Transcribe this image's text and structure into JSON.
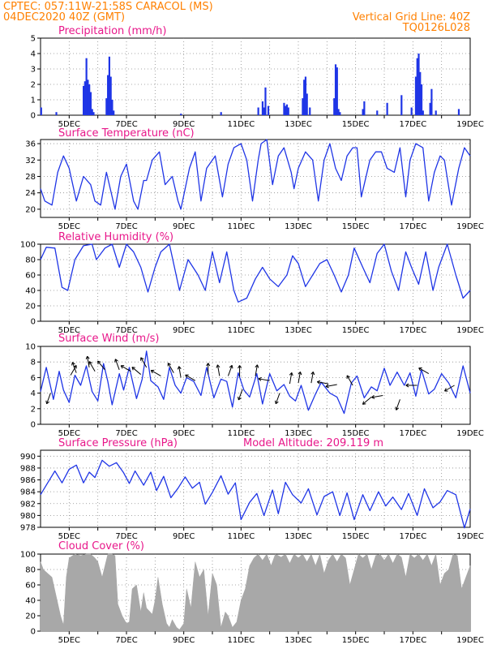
{
  "header": {
    "line1": "CPTEC:   057:11W-21:58S  CARACOL (MS)",
    "line2": "04DEC2020 40Z (GMT)",
    "right1": "Vertical Grid Line: 40Z",
    "right2": "TQ0126L028"
  },
  "colors": {
    "header": "#ff8000",
    "title": "#e8178a",
    "series": "#1f35e6",
    "cloud": "#a8a8a8",
    "grid": "#8c8c8c"
  },
  "x_axis": {
    "ticks": [
      "5DEC",
      "7DEC",
      "9DEC",
      "11DEC",
      "13DEC",
      "15DEC",
      "17DEC",
      "19DEC"
    ],
    "range_days": [
      4,
      19
    ]
  },
  "chart_data": [
    {
      "id": "precip",
      "type": "bar",
      "title": "Precipitation (mm/h)",
      "ylim": [
        0,
        5
      ],
      "yticks": [
        0,
        1,
        2,
        3,
        4,
        5
      ],
      "x": [
        4.02,
        4.55,
        5.5,
        5.55,
        5.6,
        5.65,
        5.7,
        5.75,
        5.8,
        5.85,
        6.3,
        6.35,
        6.4,
        6.45,
        6.5,
        6.55,
        8.9,
        10.3,
        11.6,
        11.75,
        11.8,
        11.85,
        11.95,
        12.5,
        12.55,
        12.6,
        12.65,
        13.15,
        13.2,
        13.25,
        13.3,
        13.4,
        14.25,
        14.3,
        14.35,
        14.4,
        14.45,
        15.25,
        15.3,
        15.75,
        16.1,
        16.6,
        16.95,
        17.1,
        17.15,
        17.2,
        17.25,
        17.3,
        17.35,
        17.6,
        17.65,
        17.8,
        18.6
      ],
      "values": [
        0.5,
        0.2,
        1.9,
        2.2,
        3.7,
        2.3,
        2.0,
        1.5,
        0.4,
        0.2,
        1.1,
        2.6,
        3.8,
        2.5,
        1.0,
        0.3,
        0.1,
        0.2,
        0.5,
        0.9,
        0.5,
        1.8,
        0.6,
        0.8,
        0.6,
        0.7,
        0.5,
        1.1,
        2.3,
        2.5,
        1.4,
        0.5,
        1.1,
        3.3,
        3.1,
        0.4,
        0.2,
        0.4,
        0.9,
        0.3,
        0.8,
        1.3,
        0.5,
        2.5,
        3.7,
        4.0,
        2.8,
        2.0,
        0.3,
        0.8,
        1.7,
        0.3,
        0.4
      ]
    },
    {
      "id": "temp",
      "type": "line",
      "title": "Surface Temperature (nC)",
      "ylim": [
        18,
        37
      ],
      "yticks": [
        20,
        24,
        28,
        32,
        36
      ],
      "x": [
        4.0,
        4.15,
        4.4,
        4.6,
        4.8,
        5.0,
        5.25,
        5.5,
        5.75,
        5.9,
        6.1,
        6.3,
        6.6,
        6.8,
        7.0,
        7.25,
        7.4,
        7.6,
        7.7,
        7.9,
        8.15,
        8.35,
        8.6,
        8.8,
        8.9,
        9.2,
        9.4,
        9.6,
        9.8,
        10.1,
        10.35,
        10.55,
        10.75,
        11.0,
        11.2,
        11.4,
        11.6,
        11.7,
        11.9,
        12.1,
        12.3,
        12.5,
        12.75,
        12.85,
        13.0,
        13.25,
        13.5,
        13.7,
        13.9,
        14.1,
        14.3,
        14.5,
        14.7,
        14.9,
        15.05,
        15.2,
        15.5,
        15.7,
        15.9,
        16.1,
        16.35,
        16.55,
        16.75,
        16.9,
        17.1,
        17.35,
        17.55,
        17.75,
        17.95,
        18.1,
        18.35,
        18.6,
        18.8,
        19.0
      ],
      "values": [
        25,
        22,
        21,
        29,
        33,
        30,
        22,
        28,
        26,
        22,
        21,
        29,
        20,
        28,
        31,
        22,
        20,
        27,
        27,
        32,
        34,
        26,
        28,
        22,
        20,
        30,
        34,
        22,
        30,
        33,
        23,
        31,
        35,
        36,
        32,
        22,
        32,
        36,
        37,
        26,
        33,
        35,
        29,
        25,
        30,
        34,
        32,
        22,
        32,
        36,
        30,
        27,
        33,
        35,
        35,
        23,
        32,
        34,
        34,
        30,
        29,
        35,
        23,
        32,
        36,
        35,
        22,
        29,
        33,
        32,
        21,
        30,
        35,
        33
      ]
    },
    {
      "id": "rh",
      "type": "line",
      "title": "Relative Humidity (%)",
      "ylim": [
        0,
        100
      ],
      "yticks": [
        0,
        20,
        40,
        60,
        80,
        100
      ],
      "x": [
        4.0,
        4.2,
        4.5,
        4.75,
        4.95,
        5.2,
        5.5,
        5.8,
        5.95,
        6.25,
        6.5,
        6.75,
        7.0,
        7.25,
        7.5,
        7.75,
        8.0,
        8.2,
        8.5,
        8.85,
        9.15,
        9.5,
        9.75,
        10.0,
        10.25,
        10.5,
        10.75,
        10.9,
        11.2,
        11.5,
        11.75,
        12.0,
        12.3,
        12.6,
        12.8,
        13.0,
        13.25,
        13.5,
        13.75,
        14.0,
        14.25,
        14.5,
        14.75,
        14.95,
        15.25,
        15.5,
        15.75,
        16.0,
        16.25,
        16.5,
        16.75,
        16.95,
        17.2,
        17.45,
        17.7,
        17.9,
        18.2,
        18.5,
        18.75,
        19.0
      ],
      "values": [
        80,
        96,
        95,
        44,
        40,
        80,
        98,
        100,
        80,
        95,
        100,
        70,
        100,
        90,
        70,
        38,
        70,
        90,
        100,
        40,
        80,
        60,
        40,
        90,
        50,
        90,
        40,
        25,
        30,
        55,
        70,
        55,
        45,
        60,
        85,
        75,
        45,
        60,
        75,
        80,
        60,
        38,
        60,
        95,
        70,
        50,
        88,
        100,
        65,
        40,
        90,
        70,
        48,
        90,
        40,
        70,
        100,
        60,
        30,
        40
      ]
    },
    {
      "id": "wind",
      "type": "line",
      "title": "Surface Wind (m/s)",
      "ylim": [
        0,
        10
      ],
      "yticks": [
        0,
        2,
        4,
        6,
        8,
        10
      ],
      "x": [
        4.0,
        4.2,
        4.45,
        4.65,
        4.8,
        5.0,
        5.2,
        5.4,
        5.6,
        5.8,
        6.0,
        6.2,
        6.35,
        6.5,
        6.75,
        6.9,
        7.1,
        7.35,
        7.55,
        7.7,
        7.85,
        8.1,
        8.3,
        8.5,
        8.7,
        8.9,
        9.1,
        9.35,
        9.6,
        9.8,
        10.05,
        10.3,
        10.5,
        10.7,
        10.9,
        11.1,
        11.3,
        11.55,
        11.75,
        12.0,
        12.25,
        12.5,
        12.7,
        12.9,
        13.1,
        13.35,
        13.6,
        13.8,
        14.1,
        14.35,
        14.6,
        14.85,
        15.05,
        15.3,
        15.55,
        15.75,
        16.0,
        16.2,
        16.45,
        16.7,
        16.9,
        17.1,
        17.3,
        17.55,
        17.75,
        18.0,
        18.25,
        18.5,
        18.75,
        19.0
      ],
      "values": [
        4.2,
        7.3,
        3.2,
        6.8,
        4.4,
        2.8,
        6.3,
        5.0,
        7.5,
        4.2,
        3.0,
        7.8,
        5.5,
        2.5,
        6.5,
        4.4,
        7.3,
        3.3,
        5.8,
        9.4,
        5.6,
        4.8,
        3.2,
        7.3,
        5.0,
        4.0,
        6.0,
        5.5,
        3.7,
        7.3,
        3.4,
        5.8,
        5.5,
        2.2,
        6.6,
        4.4,
        3.5,
        6.5,
        2.6,
        6.5,
        4.3,
        5.1,
        3.6,
        3.0,
        5.0,
        1.8,
        3.9,
        5.4,
        4.0,
        3.5,
        1.4,
        5.3,
        6.2,
        3.4,
        4.8,
        4.3,
        7.2,
        5.0,
        6.7,
        5.0,
        6.6,
        3.6,
        7.0,
        3.9,
        4.5,
        6.5,
        5.3,
        3.4,
        7.5,
        4.0
      ],
      "arrows": [
        {
          "x": 4.35,
          "dir": 200,
          "v": 4.0
        },
        {
          "x": 5.05,
          "dir": 30,
          "v": 6.3
        },
        {
          "x": 5.25,
          "dir": 340,
          "v": 6.6
        },
        {
          "x": 5.7,
          "dir": 350,
          "v": 7.3
        },
        {
          "x": 5.9,
          "dir": 330,
          "v": 6.8
        },
        {
          "x": 6.25,
          "dir": 320,
          "v": 7.0
        },
        {
          "x": 6.75,
          "dir": 340,
          "v": 7.0
        },
        {
          "x": 7.15,
          "dir": 300,
          "v": 6.8
        },
        {
          "x": 7.5,
          "dir": 310,
          "v": 6.4
        },
        {
          "x": 7.7,
          "dir": 330,
          "v": 7.3
        },
        {
          "x": 8.2,
          "dir": 300,
          "v": 6.2
        },
        {
          "x": 8.65,
          "dir": 330,
          "v": 6.6
        },
        {
          "x": 8.9,
          "dir": 350,
          "v": 6.0
        },
        {
          "x": 9.4,
          "dir": 300,
          "v": 5.6
        },
        {
          "x": 9.85,
          "dir": 0,
          "v": 6.4
        },
        {
          "x": 10.25,
          "dir": 350,
          "v": 6.2
        },
        {
          "x": 10.55,
          "dir": 20,
          "v": 6.2
        },
        {
          "x": 10.95,
          "dir": 0,
          "v": 6.1
        },
        {
          "x": 11.5,
          "dir": 10,
          "v": 6.2
        },
        {
          "x": 11.05,
          "dir": 200,
          "v": 4.5
        },
        {
          "x": 12.0,
          "dir": 280,
          "v": 5.6
        },
        {
          "x": 12.35,
          "dir": 200,
          "v": 4.0
        },
        {
          "x": 12.7,
          "dir": 10,
          "v": 5.2
        },
        {
          "x": 13.0,
          "dir": 10,
          "v": 5.3
        },
        {
          "x": 13.45,
          "dir": 10,
          "v": 5.3
        },
        {
          "x": 14.05,
          "dir": 280,
          "v": 5.2
        },
        {
          "x": 14.35,
          "dir": 260,
          "v": 5.1
        },
        {
          "x": 14.9,
          "dir": 330,
          "v": 5.0
        },
        {
          "x": 15.55,
          "dir": 230,
          "v": 3.5
        },
        {
          "x": 15.95,
          "dir": 260,
          "v": 3.7
        },
        {
          "x": 16.55,
          "dir": 200,
          "v": 3.2
        },
        {
          "x": 17.15,
          "dir": 270,
          "v": 5.0
        },
        {
          "x": 17.55,
          "dir": 300,
          "v": 6.5
        },
        {
          "x": 18.45,
          "dir": 240,
          "v": 5.0
        }
      ]
    },
    {
      "id": "pressure",
      "type": "line",
      "title": "Surface Pressure (hPa)",
      "annotation": "Model Altitude: 209.119 m",
      "ylim": [
        978,
        991
      ],
      "yticks": [
        978,
        980,
        982,
        984,
        986,
        988,
        990
      ],
      "x": [
        4.0,
        4.25,
        4.5,
        4.75,
        5.0,
        5.25,
        5.5,
        5.7,
        5.9,
        6.15,
        6.4,
        6.65,
        6.9,
        7.1,
        7.3,
        7.6,
        7.85,
        8.05,
        8.3,
        8.55,
        8.8,
        9.05,
        9.3,
        9.55,
        9.75,
        10.0,
        10.3,
        10.55,
        10.8,
        11.0,
        11.3,
        11.55,
        11.8,
        12.1,
        12.3,
        12.55,
        12.8,
        13.1,
        13.35,
        13.65,
        13.9,
        14.2,
        14.45,
        14.7,
        14.95,
        15.25,
        15.5,
        15.8,
        16.05,
        16.3,
        16.6,
        16.85,
        17.15,
        17.4,
        17.7,
        17.95,
        18.2,
        18.5,
        18.8,
        19.0
      ],
      "values": [
        983.5,
        985.5,
        987.5,
        985.5,
        987.8,
        988.5,
        985.5,
        987.3,
        986.4,
        989.3,
        988.3,
        988.9,
        987.2,
        985.4,
        987.5,
        985.1,
        987.3,
        984.2,
        986.6,
        983.0,
        984.6,
        986.5,
        984.6,
        985.6,
        981.9,
        983.9,
        986.7,
        983.6,
        985.5,
        979.3,
        982.2,
        983.7,
        980.0,
        984.3,
        980.3,
        985.6,
        983.5,
        982.1,
        984.5,
        980.1,
        983.2,
        984.0,
        980.0,
        983.8,
        979.3,
        983.5,
        980.8,
        984.0,
        981.6,
        983.1,
        981.0,
        983.7,
        980.0,
        984.5,
        981.3,
        982.3,
        984.2,
        983.5,
        977.9,
        981.1
      ]
    },
    {
      "id": "cloud",
      "type": "area",
      "title": "Cloud Cover (%)",
      "ylim": [
        0,
        100
      ],
      "yticks": [
        0,
        20,
        40,
        60,
        80,
        100
      ],
      "x": [
        4.0,
        4.1,
        4.25,
        4.4,
        4.55,
        4.7,
        4.8,
        4.9,
        5.0,
        5.2,
        5.4,
        5.6,
        5.75,
        5.9,
        6.0,
        6.15,
        6.25,
        6.35,
        6.5,
        6.6,
        6.7,
        6.85,
        7.0,
        7.1,
        7.2,
        7.35,
        7.5,
        7.6,
        7.7,
        7.9,
        8.0,
        8.1,
        8.25,
        8.4,
        8.5,
        8.6,
        8.75,
        8.85,
        9.0,
        9.1,
        9.25,
        9.4,
        9.55,
        9.7,
        9.85,
        10.0,
        10.15,
        10.3,
        10.45,
        10.55,
        10.7,
        10.85,
        11.0,
        11.15,
        11.3,
        11.45,
        11.6,
        11.75,
        11.9,
        12.05,
        12.2,
        12.4,
        12.55,
        12.7,
        12.85,
        13.0,
        13.15,
        13.3,
        13.45,
        13.6,
        13.75,
        13.9,
        14.05,
        14.2,
        14.35,
        14.5,
        14.65,
        14.8,
        14.95,
        15.1,
        15.25,
        15.4,
        15.55,
        15.7,
        15.85,
        16.0,
        16.15,
        16.3,
        16.45,
        16.6,
        16.75,
        16.9,
        17.05,
        17.2,
        17.35,
        17.5,
        17.65,
        17.8,
        17.95,
        18.1,
        18.25,
        18.4,
        18.55,
        18.7,
        18.85,
        19.0
      ],
      "values": [
        90,
        80,
        75,
        70,
        45,
        20,
        8,
        70,
        95,
        100,
        98,
        100,
        100,
        95,
        90,
        70,
        85,
        100,
        100,
        98,
        35,
        20,
        10,
        12,
        55,
        60,
        25,
        50,
        30,
        22,
        40,
        70,
        35,
        10,
        5,
        15,
        5,
        2,
        10,
        55,
        30,
        90,
        70,
        80,
        20,
        75,
        60,
        5,
        25,
        20,
        5,
        12,
        40,
        55,
        85,
        95,
        100,
        92,
        100,
        85,
        100,
        96,
        100,
        88,
        100,
        95,
        100,
        90,
        100,
        85,
        100,
        75,
        92,
        100,
        90,
        100,
        95,
        60,
        80,
        100,
        95,
        100,
        80,
        98,
        100,
        92,
        100,
        88,
        100,
        96,
        70,
        100,
        95,
        100,
        92,
        100,
        85,
        100,
        60,
        75,
        80,
        100,
        98,
        55,
        70,
        85
      ]
    }
  ]
}
